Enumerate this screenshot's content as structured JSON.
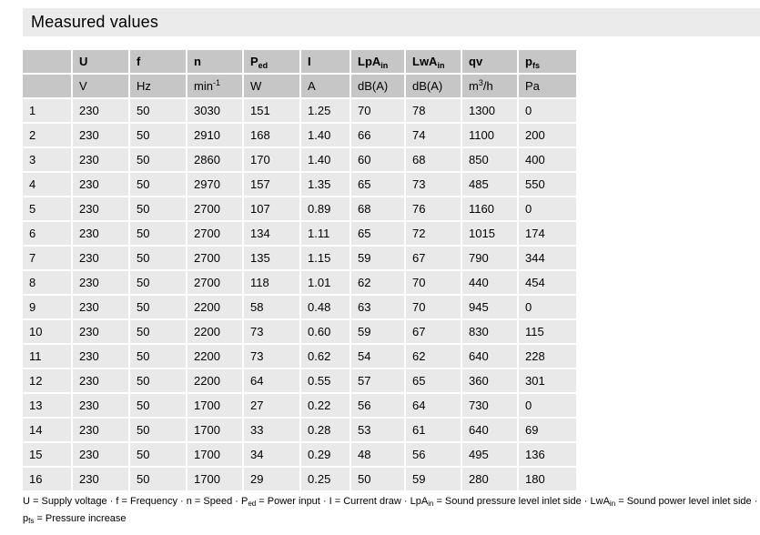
{
  "title": "Measured values",
  "colors": {
    "title_bar_bg": "#ebebeb",
    "header_cell_bg": "#c6c6c6",
    "data_cell_bg": "#e9e9e9",
    "text": "#000000"
  },
  "table": {
    "header": [
      {
        "main": ""
      },
      {
        "main": "U"
      },
      {
        "main": "f"
      },
      {
        "main": "n"
      },
      {
        "main": "P",
        "sub": "ed"
      },
      {
        "main": "I"
      },
      {
        "main": "LpA",
        "sub": "in"
      },
      {
        "main": "LwA",
        "sub": "in"
      },
      {
        "main": "qv"
      },
      {
        "main": "p",
        "sub": "fs"
      }
    ],
    "units": [
      {
        "main": ""
      },
      {
        "main": "V"
      },
      {
        "main": "Hz"
      },
      {
        "main": "min",
        "sup": "-1"
      },
      {
        "main": "W"
      },
      {
        "main": "A"
      },
      {
        "main": "dB(A)"
      },
      {
        "main": "dB(A)"
      },
      {
        "main": "m",
        "sup": "3",
        "after": "/h"
      },
      {
        "main": "Pa"
      }
    ],
    "rows": [
      [
        "1",
        "230",
        "50",
        "3030",
        "151",
        "1.25",
        "70",
        "78",
        "1300",
        "0"
      ],
      [
        "2",
        "230",
        "50",
        "2910",
        "168",
        "1.40",
        "66",
        "74",
        "1100",
        "200"
      ],
      [
        "3",
        "230",
        "50",
        "2860",
        "170",
        "1.40",
        "60",
        "68",
        "850",
        "400"
      ],
      [
        "4",
        "230",
        "50",
        "2970",
        "157",
        "1.35",
        "65",
        "73",
        "485",
        "550"
      ],
      [
        "5",
        "230",
        "50",
        "2700",
        "107",
        "0.89",
        "68",
        "76",
        "1160",
        "0"
      ],
      [
        "6",
        "230",
        "50",
        "2700",
        "134",
        "1.11",
        "65",
        "72",
        "1015",
        "174"
      ],
      [
        "7",
        "230",
        "50",
        "2700",
        "135",
        "1.15",
        "59",
        "67",
        "790",
        "344"
      ],
      [
        "8",
        "230",
        "50",
        "2700",
        "118",
        "1.01",
        "62",
        "70",
        "440",
        "454"
      ],
      [
        "9",
        "230",
        "50",
        "2200",
        "58",
        "0.48",
        "63",
        "70",
        "945",
        "0"
      ],
      [
        "10",
        "230",
        "50",
        "2200",
        "73",
        "0.60",
        "59",
        "67",
        "830",
        "115"
      ],
      [
        "11",
        "230",
        "50",
        "2200",
        "73",
        "0.62",
        "54",
        "62",
        "640",
        "228"
      ],
      [
        "12",
        "230",
        "50",
        "2200",
        "64",
        "0.55",
        "57",
        "65",
        "360",
        "301"
      ],
      [
        "13",
        "230",
        "50",
        "1700",
        "27",
        "0.22",
        "56",
        "64",
        "730",
        "0"
      ],
      [
        "14",
        "230",
        "50",
        "1700",
        "33",
        "0.28",
        "53",
        "61",
        "640",
        "69"
      ],
      [
        "15",
        "230",
        "50",
        "1700",
        "34",
        "0.29",
        "48",
        "56",
        "495",
        "136"
      ],
      [
        "16",
        "230",
        "50",
        "1700",
        "29",
        "0.25",
        "50",
        "59",
        "280",
        "180"
      ]
    ]
  },
  "footnote": {
    "line1": [
      {
        "t": "U = Supply voltage · f = Frequency · n = Speed · P"
      },
      {
        "sub": "ed"
      },
      {
        "t": " = Power input · I = Current draw · LpA"
      },
      {
        "sub": "in"
      },
      {
        "t": " = Sound pressure level inlet side · LwA"
      },
      {
        "sub": "in"
      },
      {
        "t": " = Sound power level inlet side · qv = Air flow"
      }
    ],
    "line2": [
      {
        "t": "p"
      },
      {
        "sub": "fs"
      },
      {
        "t": " = Pressure increase"
      }
    ]
  }
}
